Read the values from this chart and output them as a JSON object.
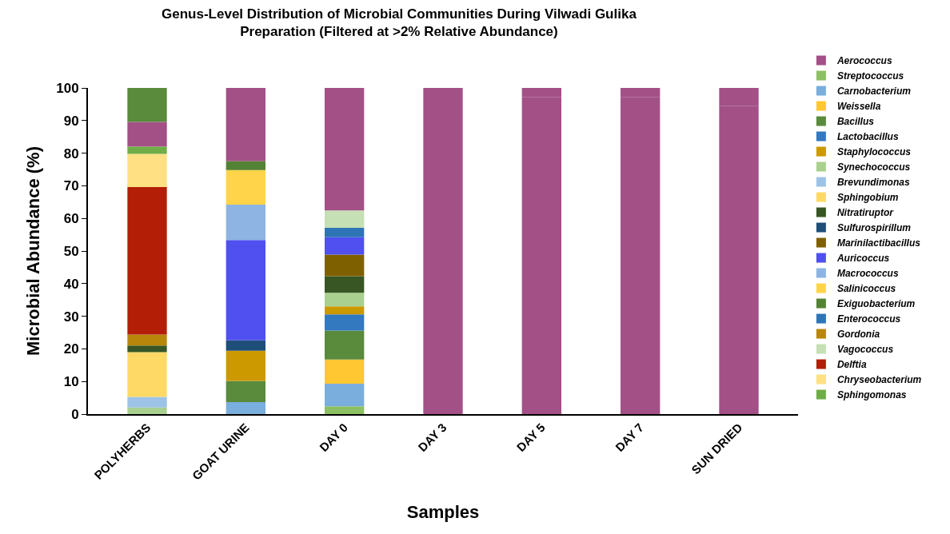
{
  "chart_data": {
    "type": "bar",
    "title": "Genus-Level Distribution of Microbial Communities During Vilwadi Gulika Preparation (Filtered at >2% Relative Abundance)",
    "xlabel": "Samples",
    "ylabel": "Microbial Abundance (%)",
    "categories": [
      "POLYHERBS",
      "GOAT URINE",
      "DAY 0",
      "DAY 3",
      "DAY 5",
      "DAY 7",
      "SUN DRIED"
    ],
    "ylim": [
      0,
      100
    ],
    "yticks": [
      0,
      10,
      20,
      30,
      40,
      50,
      60,
      70,
      80,
      90,
      100
    ],
    "legend": "right",
    "series": [
      {
        "name": "Aerococcus",
        "color": "#a35087",
        "values": [
          7.6,
          22.5,
          37.6,
          3.9,
          2.9,
          2.9,
          5.6
        ],
        "base": [
          82,
          77.5,
          62.4,
          96.1,
          97.1,
          97.1,
          94.4
        ]
      },
      {
        "name": "Streptococcus",
        "color": "#8cc063",
        "values": [
          null,
          null,
          2.4,
          null,
          null,
          null,
          null
        ],
        "base": [
          null,
          null,
          0,
          null,
          null,
          null,
          null
        ]
      },
      {
        "name": "Carnobacterium",
        "color": "#7aaedc",
        "values": [
          null,
          3.7,
          6.9,
          null,
          null,
          null,
          null
        ],
        "base": [
          null,
          0,
          2.4,
          null,
          null,
          null,
          null
        ]
      },
      {
        "name": "Weissella",
        "color": "#ffc832",
        "values": [
          null,
          null,
          7.4,
          null,
          null,
          null,
          null
        ],
        "base": [
          null,
          null,
          9.3,
          null,
          null,
          null,
          null
        ]
      },
      {
        "name": "Bacillus",
        "color": "#5a8a3c",
        "values": [
          10.4,
          6.5,
          8.9,
          null,
          null,
          null,
          null
        ],
        "base": [
          89.6,
          3.7,
          16.7,
          null,
          null,
          null,
          null
        ]
      },
      {
        "name": "Lactobacillus",
        "color": "#3279c0",
        "values": [
          null,
          null,
          5.0,
          null,
          null,
          null,
          null
        ],
        "base": [
          null,
          null,
          25.6,
          null,
          null,
          null,
          null
        ]
      },
      {
        "name": "Staphylococcus",
        "color": "#cc9900",
        "values": [
          null,
          9.2,
          2.4,
          null,
          null,
          null,
          null
        ],
        "base": [
          null,
          10.2,
          30.6,
          null,
          null,
          null,
          null
        ]
      },
      {
        "name": "Synechococcus",
        "color": "#a9d08e",
        "values": [
          2,
          null,
          4.2,
          null,
          null,
          null,
          null
        ],
        "base": [
          0,
          null,
          33.0,
          null,
          null,
          null,
          null
        ]
      },
      {
        "name": "Brevundimonas",
        "color": "#9dc3e6",
        "values": [
          3.3,
          null,
          null,
          null,
          null,
          null,
          null
        ],
        "base": [
          2,
          null,
          null,
          null,
          null,
          null,
          null
        ]
      },
      {
        "name": "Sphingobium",
        "color": "#ffd966",
        "values": [
          13.7,
          null,
          null,
          null,
          null,
          null,
          null
        ],
        "base": [
          5.3,
          null,
          null,
          null,
          null,
          null,
          null
        ]
      },
      {
        "name": "Nitratiruptor",
        "color": "#375623",
        "values": [
          2,
          null,
          5.1,
          null,
          null,
          null,
          null
        ],
        "base": [
          19,
          null,
          37.2,
          null,
          null,
          null,
          null
        ]
      },
      {
        "name": "Sulfurospirillum",
        "color": "#1f4e79",
        "values": [
          null,
          3.2,
          null,
          null,
          null,
          null,
          null
        ],
        "base": [
          null,
          19.4,
          null,
          null,
          null,
          null,
          null
        ]
      },
      {
        "name": "Marinilactibacillus",
        "color": "#7f6000",
        "values": [
          null,
          null,
          6.6,
          null,
          null,
          null,
          null
        ],
        "base": [
          null,
          null,
          42.3,
          null,
          null,
          null,
          null
        ]
      },
      {
        "name": "Auricoccus",
        "color": "#5050f0",
        "values": [
          null,
          30.8,
          5.3,
          null,
          null,
          null,
          null
        ],
        "base": [
          null,
          22.6,
          48.9,
          null,
          null,
          null,
          null
        ]
      },
      {
        "name": "Macrococcus",
        "color": "#8db4e2",
        "values": [
          null,
          10.8,
          null,
          null,
          null,
          null,
          null
        ],
        "base": [
          null,
          53.4,
          null,
          null,
          null,
          null,
          null
        ]
      },
      {
        "name": "Salinicoccus",
        "color": "#ffd44a",
        "values": [
          null,
          10.6,
          null,
          null,
          null,
          null,
          null
        ],
        "base": [
          null,
          64.2,
          null,
          null,
          null,
          null,
          null
        ]
      },
      {
        "name": "Exiguobacterium",
        "color": "#548235",
        "values": [
          null,
          2.7,
          null,
          null,
          null,
          null,
          null
        ],
        "base": [
          null,
          74.8,
          null,
          null,
          null,
          null,
          null
        ]
      },
      {
        "name": "Enterococcus",
        "color": "#2e75b6",
        "values": [
          null,
          null,
          2.9,
          null,
          null,
          null,
          null
        ],
        "base": [
          null,
          null,
          54.2,
          null,
          null,
          null,
          null
        ]
      },
      {
        "name": "Gordonia",
        "color": "#b8860b",
        "values": [
          3.4,
          null,
          null,
          null,
          null,
          null,
          null
        ],
        "base": [
          21,
          null,
          null,
          null,
          null,
          null,
          null
        ]
      },
      {
        "name": "Vagococcus",
        "color": "#c5e0b4",
        "values": [
          null,
          null,
          5.3,
          null,
          null,
          null,
          null
        ],
        "base": [
          null,
          null,
          57.1,
          null,
          null,
          null,
          null
        ]
      },
      {
        "name": "Delftia",
        "color": "#b21f06",
        "values": [
          45.2,
          null,
          null,
          null,
          null,
          null,
          null
        ],
        "base": [
          24.4,
          null,
          null,
          null,
          null,
          null,
          null
        ]
      },
      {
        "name": "Chryseobacterium",
        "color": "#ffe082",
        "values": [
          10.2,
          null,
          null,
          null,
          null,
          null,
          null
        ],
        "base": [
          69.6,
          null,
          null,
          null,
          null,
          null,
          null
        ]
      },
      {
        "name": "Sphingomonas",
        "color": "#70ad47",
        "values": [
          2.2,
          null,
          null,
          null,
          null,
          null,
          null
        ],
        "base": [
          79.8,
          null,
          null,
          null,
          null,
          null,
          null
        ]
      },
      {
        "color": "#a35087",
        "values": [
          null,
          null,
          null,
          96.1,
          97.1,
          97.1,
          94.4
        ],
        "base": [
          null,
          null,
          null,
          0,
          0,
          0,
          0
        ]
      }
    ]
  }
}
